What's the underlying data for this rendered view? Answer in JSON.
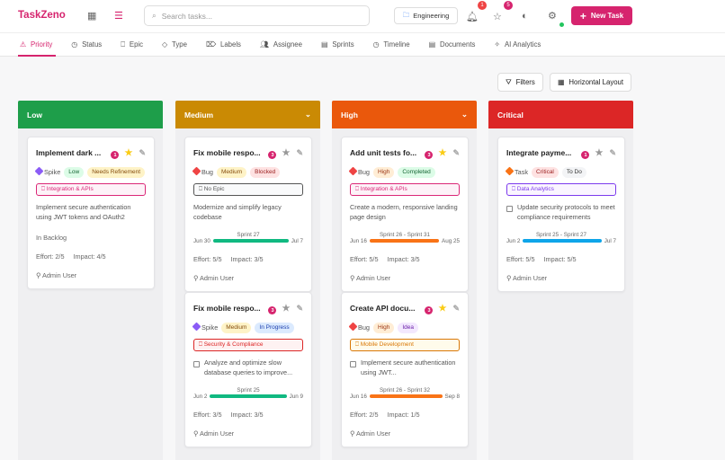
{
  "app": {
    "title": "TaskZeno",
    "search_placeholder": "Search tasks...",
    "workspace": "Engineering",
    "notifications_count": "1",
    "favorites_count": "5",
    "new_task": "New Task"
  },
  "tabs": [
    {
      "label": "Priority",
      "icon": "alert-triangle-icon"
    },
    {
      "label": "Status",
      "icon": "clock-icon"
    },
    {
      "label": "Epic",
      "icon": "bookmark-icon"
    },
    {
      "label": "Type",
      "icon": "diamond-icon"
    },
    {
      "label": "Labels",
      "icon": "tags-icon"
    },
    {
      "label": "Assignee",
      "icon": "users-icon"
    },
    {
      "label": "Sprints",
      "icon": "calendar-icon"
    },
    {
      "label": "Timeline",
      "icon": "clock-icon"
    },
    {
      "label": "Documents",
      "icon": "file-icon"
    },
    {
      "label": "AI Analytics",
      "icon": "sparkles-icon"
    }
  ],
  "toolbar": {
    "filters": "Filters",
    "layout": "Horizontal Layout"
  },
  "columns": [
    {
      "title": "Low",
      "color": "#1e9e4a",
      "chevron": false,
      "cards": [
        {
          "title": "Implement dark ...",
          "count": "1",
          "starred": true,
          "type": "Spike",
          "type_color": "#8b5cf6",
          "priority": "Low",
          "priority_bg": "#dcfce7",
          "priority_fg": "#166534",
          "status": "Needs Refinement",
          "status_bg": "#fef3c7",
          "status_fg": "#854d0e",
          "epic": "Integration & APIs",
          "epic_color": "#db2777",
          "epic_bg": "#fdf2f8",
          "desc": "Implement secure authentication using JWT tokens and OAuth2",
          "checkbox": false,
          "extra": "In Backlog",
          "effort": "Effort: 2/5",
          "impact": "Impact: 4/5",
          "user": "Admin User"
        }
      ]
    },
    {
      "title": "Medium",
      "color": "#ca8a04",
      "chevron": true,
      "cards": [
        {
          "title": "Fix mobile respo...",
          "count": "3",
          "starred": false,
          "type": "Bug",
          "type_color": "#ef4444",
          "priority": "Medium",
          "priority_bg": "#fef3c7",
          "priority_fg": "#854d0e",
          "status": "Blocked",
          "status_bg": "#fee2e2",
          "status_fg": "#991b1b",
          "epic": "No Epic",
          "epic_color": "#555555",
          "epic_bg": "#f9fafb",
          "desc": "Modernize and simplify legacy codebase",
          "checkbox": false,
          "sprint": "Sprint 27",
          "start": "Jun 30",
          "end": "Jul 7",
          "bar": "#10b981",
          "effort": "Effort: 5/5",
          "impact": "Impact: 3/5",
          "user": "Admin User"
        },
        {
          "title": "Fix mobile respo...",
          "count": "3",
          "starred": false,
          "type": "Spike",
          "type_color": "#8b5cf6",
          "priority": "Medium",
          "priority_bg": "#fef3c7",
          "priority_fg": "#854d0e",
          "status": "In Progress",
          "status_bg": "#dbeafe",
          "status_fg": "#1e40af",
          "epic": "Security & Compliance",
          "epic_color": "#dc2626",
          "epic_bg": "#fef2f2",
          "desc": "Analyze and optimize slow database queries to improve...",
          "checkbox": true,
          "sprint": "Sprint 25",
          "start": "Jun 2",
          "end": "Jun 9",
          "bar": "#10b981",
          "effort": "Effort: 3/5",
          "impact": "Impact: 3/5",
          "user": "Admin User"
        }
      ]
    },
    {
      "title": "High",
      "color": "#ea580c",
      "chevron": true,
      "cards": [
        {
          "title": "Add unit tests fo...",
          "count": "3",
          "starred": true,
          "type": "Bug",
          "type_color": "#ef4444",
          "priority": "High",
          "priority_bg": "#ffedd5",
          "priority_fg": "#9a3412",
          "status": "Completed",
          "status_bg": "#dcfce7",
          "status_fg": "#166534",
          "epic": "Integration & APIs",
          "epic_color": "#db2777",
          "epic_bg": "#fdf2f8",
          "desc": "Create a modern, responsive landing page design",
          "checkbox": false,
          "sprint": "Sprint 26 - Sprint 31",
          "start": "Jun 16",
          "end": "Aug 25",
          "bar": "#f97316",
          "effort": "Effort: 5/5",
          "impact": "Impact: 3/5",
          "user": "Admin User"
        },
        {
          "title": "Create API docu...",
          "count": "3",
          "starred": true,
          "type": "Bug",
          "type_color": "#ef4444",
          "priority": "High",
          "priority_bg": "#ffedd5",
          "priority_fg": "#9a3412",
          "status": "Idea",
          "status_bg": "#f3e8ff",
          "status_fg": "#6b21a8",
          "epic": "Mobile Development",
          "epic_color": "#d97706",
          "epic_bg": "#fffbeb",
          "desc": "Implement secure authentication using JWT...",
          "checkbox": true,
          "sprint": "Sprint 26 - Sprint 32",
          "start": "Jun 16",
          "end": "Sep 8",
          "bar": "#f97316",
          "effort": "Effort: 2/5",
          "impact": "Impact: 1/5",
          "user": "Admin User"
        }
      ]
    },
    {
      "title": "Critical",
      "color": "#dc2626",
      "chevron": false,
      "cards": [
        {
          "title": "Integrate payme...",
          "count": "1",
          "starred": false,
          "type": "Task",
          "type_color": "#f97316",
          "priority": "Critical",
          "priority_bg": "#fee2e2",
          "priority_fg": "#991b1b",
          "status": "To Do",
          "status_bg": "#f3f4f6",
          "status_fg": "#333333",
          "epic": "Data Analytics",
          "epic_color": "#7c3aed",
          "epic_bg": "#faf5ff",
          "desc": "Update security protocols to meet compliance requirements",
          "checkbox": true,
          "sprint": "Sprint 25 - Sprint 27",
          "start": "Jun 2",
          "end": "Jul 7",
          "bar": "#0ea5e9",
          "effort": "Effort: 5/5",
          "impact": "Impact: 5/5",
          "user": "Admin User"
        }
      ]
    }
  ]
}
